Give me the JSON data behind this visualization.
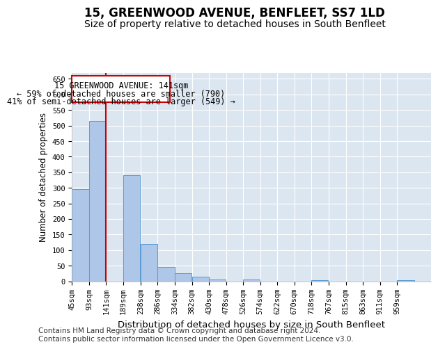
{
  "title": "15, GREENWOOD AVENUE, BENFLEET, SS7 1LD",
  "subtitle": "Size of property relative to detached houses in South Benfleet",
  "xlabel": "Distribution of detached houses by size in South Benfleet",
  "ylabel": "Number of detached properties",
  "footer_line1": "Contains HM Land Registry data © Crown copyright and database right 2024.",
  "footer_line2": "Contains public sector information licensed under the Open Government Licence v3.0.",
  "annotation_line1": "15 GREENWOOD AVENUE: 141sqm",
  "annotation_line2": "← 59% of detached houses are smaller (790)",
  "annotation_line3": "41% of semi-detached houses are larger (549) →",
  "red_line_x": 141,
  "bar_color": "#aec6e8",
  "bar_edge_color": "#5b9bd5",
  "red_line_color": "#cc0000",
  "background_color": "#dce6f1",
  "bin_edges": [
    45,
    93,
    141,
    189,
    238,
    286,
    334,
    382,
    430,
    478,
    526,
    574,
    622,
    670,
    718,
    767,
    815,
    863,
    911,
    959,
    1007
  ],
  "bar_heights": [
    295,
    515,
    0,
    340,
    120,
    45,
    25,
    15,
    5,
    0,
    5,
    0,
    0,
    0,
    3,
    0,
    0,
    0,
    0,
    3
  ],
  "ylim": [
    0,
    670
  ],
  "yticks": [
    0,
    50,
    100,
    150,
    200,
    250,
    300,
    350,
    400,
    450,
    500,
    550,
    600,
    650
  ],
  "grid_color": "#ffffff",
  "title_fontsize": 12,
  "subtitle_fontsize": 10,
  "xlabel_fontsize": 9.5,
  "ylabel_fontsize": 8.5,
  "tick_fontsize": 7.5,
  "annotation_fontsize": 8.5,
  "footer_fontsize": 7.5
}
